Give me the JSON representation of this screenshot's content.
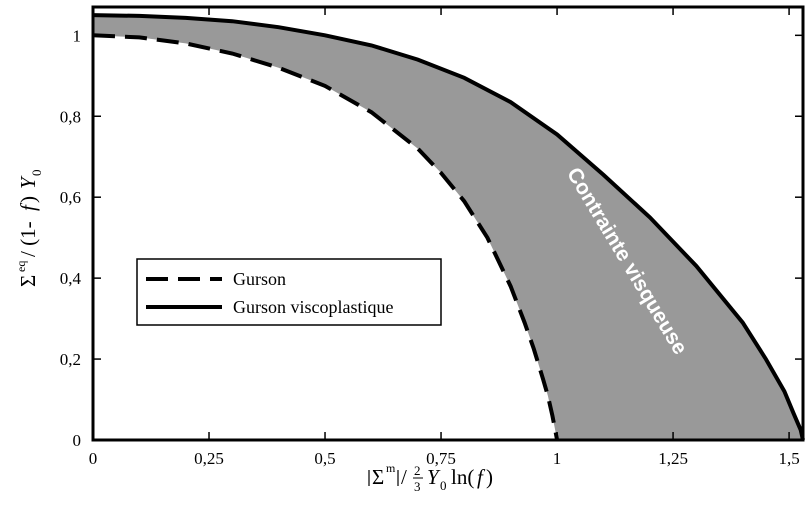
{
  "chart_data": {
    "type": "line",
    "xlabel": "|Σm|/(2/3)Y0 ln(f)",
    "ylabel": "Σeq/(1-f) Y0",
    "xlim": [
      0,
      1.53
    ],
    "ylim": [
      0,
      1.07
    ],
    "x_ticks": [
      0,
      0.25,
      0.5,
      0.75,
      1,
      1.25,
      1.5
    ],
    "x_tick_labels": [
      "0",
      "0,25",
      "0,5",
      "0,75",
      "1",
      "1,25",
      "1,5"
    ],
    "y_ticks": [
      0,
      0.2,
      0.4,
      0.6,
      0.8,
      1
    ],
    "y_tick_labels": [
      "0",
      "0,2",
      "0,4",
      "0,6",
      "0,8",
      "1"
    ],
    "grid": false,
    "legend_position": "center-left",
    "shaded_region_label": "Contrainte visqueuse",
    "shaded_color": "#999999",
    "series": [
      {
        "name": "Gurson",
        "style": "dashed",
        "color": "#000000",
        "x": [
          0,
          0.1,
          0.2,
          0.3,
          0.4,
          0.5,
          0.6,
          0.7,
          0.75,
          0.8,
          0.85,
          0.9,
          0.93,
          0.95,
          0.97,
          0.98,
          0.99,
          1.0
        ],
        "y": [
          1.0,
          0.995,
          0.98,
          0.955,
          0.92,
          0.875,
          0.81,
          0.72,
          0.66,
          0.59,
          0.5,
          0.38,
          0.29,
          0.225,
          0.15,
          0.11,
          0.06,
          0.0
        ]
      },
      {
        "name": "Gurson viscoplastique",
        "style": "solid",
        "color": "#000000",
        "x": [
          0,
          0.1,
          0.2,
          0.3,
          0.4,
          0.5,
          0.6,
          0.7,
          0.8,
          0.9,
          1.0,
          1.1,
          1.2,
          1.3,
          1.4,
          1.45,
          1.49,
          1.51,
          1.525,
          1.53
        ],
        "y": [
          1.05,
          1.048,
          1.043,
          1.035,
          1.02,
          1.0,
          0.975,
          0.94,
          0.895,
          0.835,
          0.755,
          0.655,
          0.55,
          0.43,
          0.29,
          0.2,
          0.12,
          0.065,
          0.025,
          0.0
        ]
      }
    ]
  }
}
